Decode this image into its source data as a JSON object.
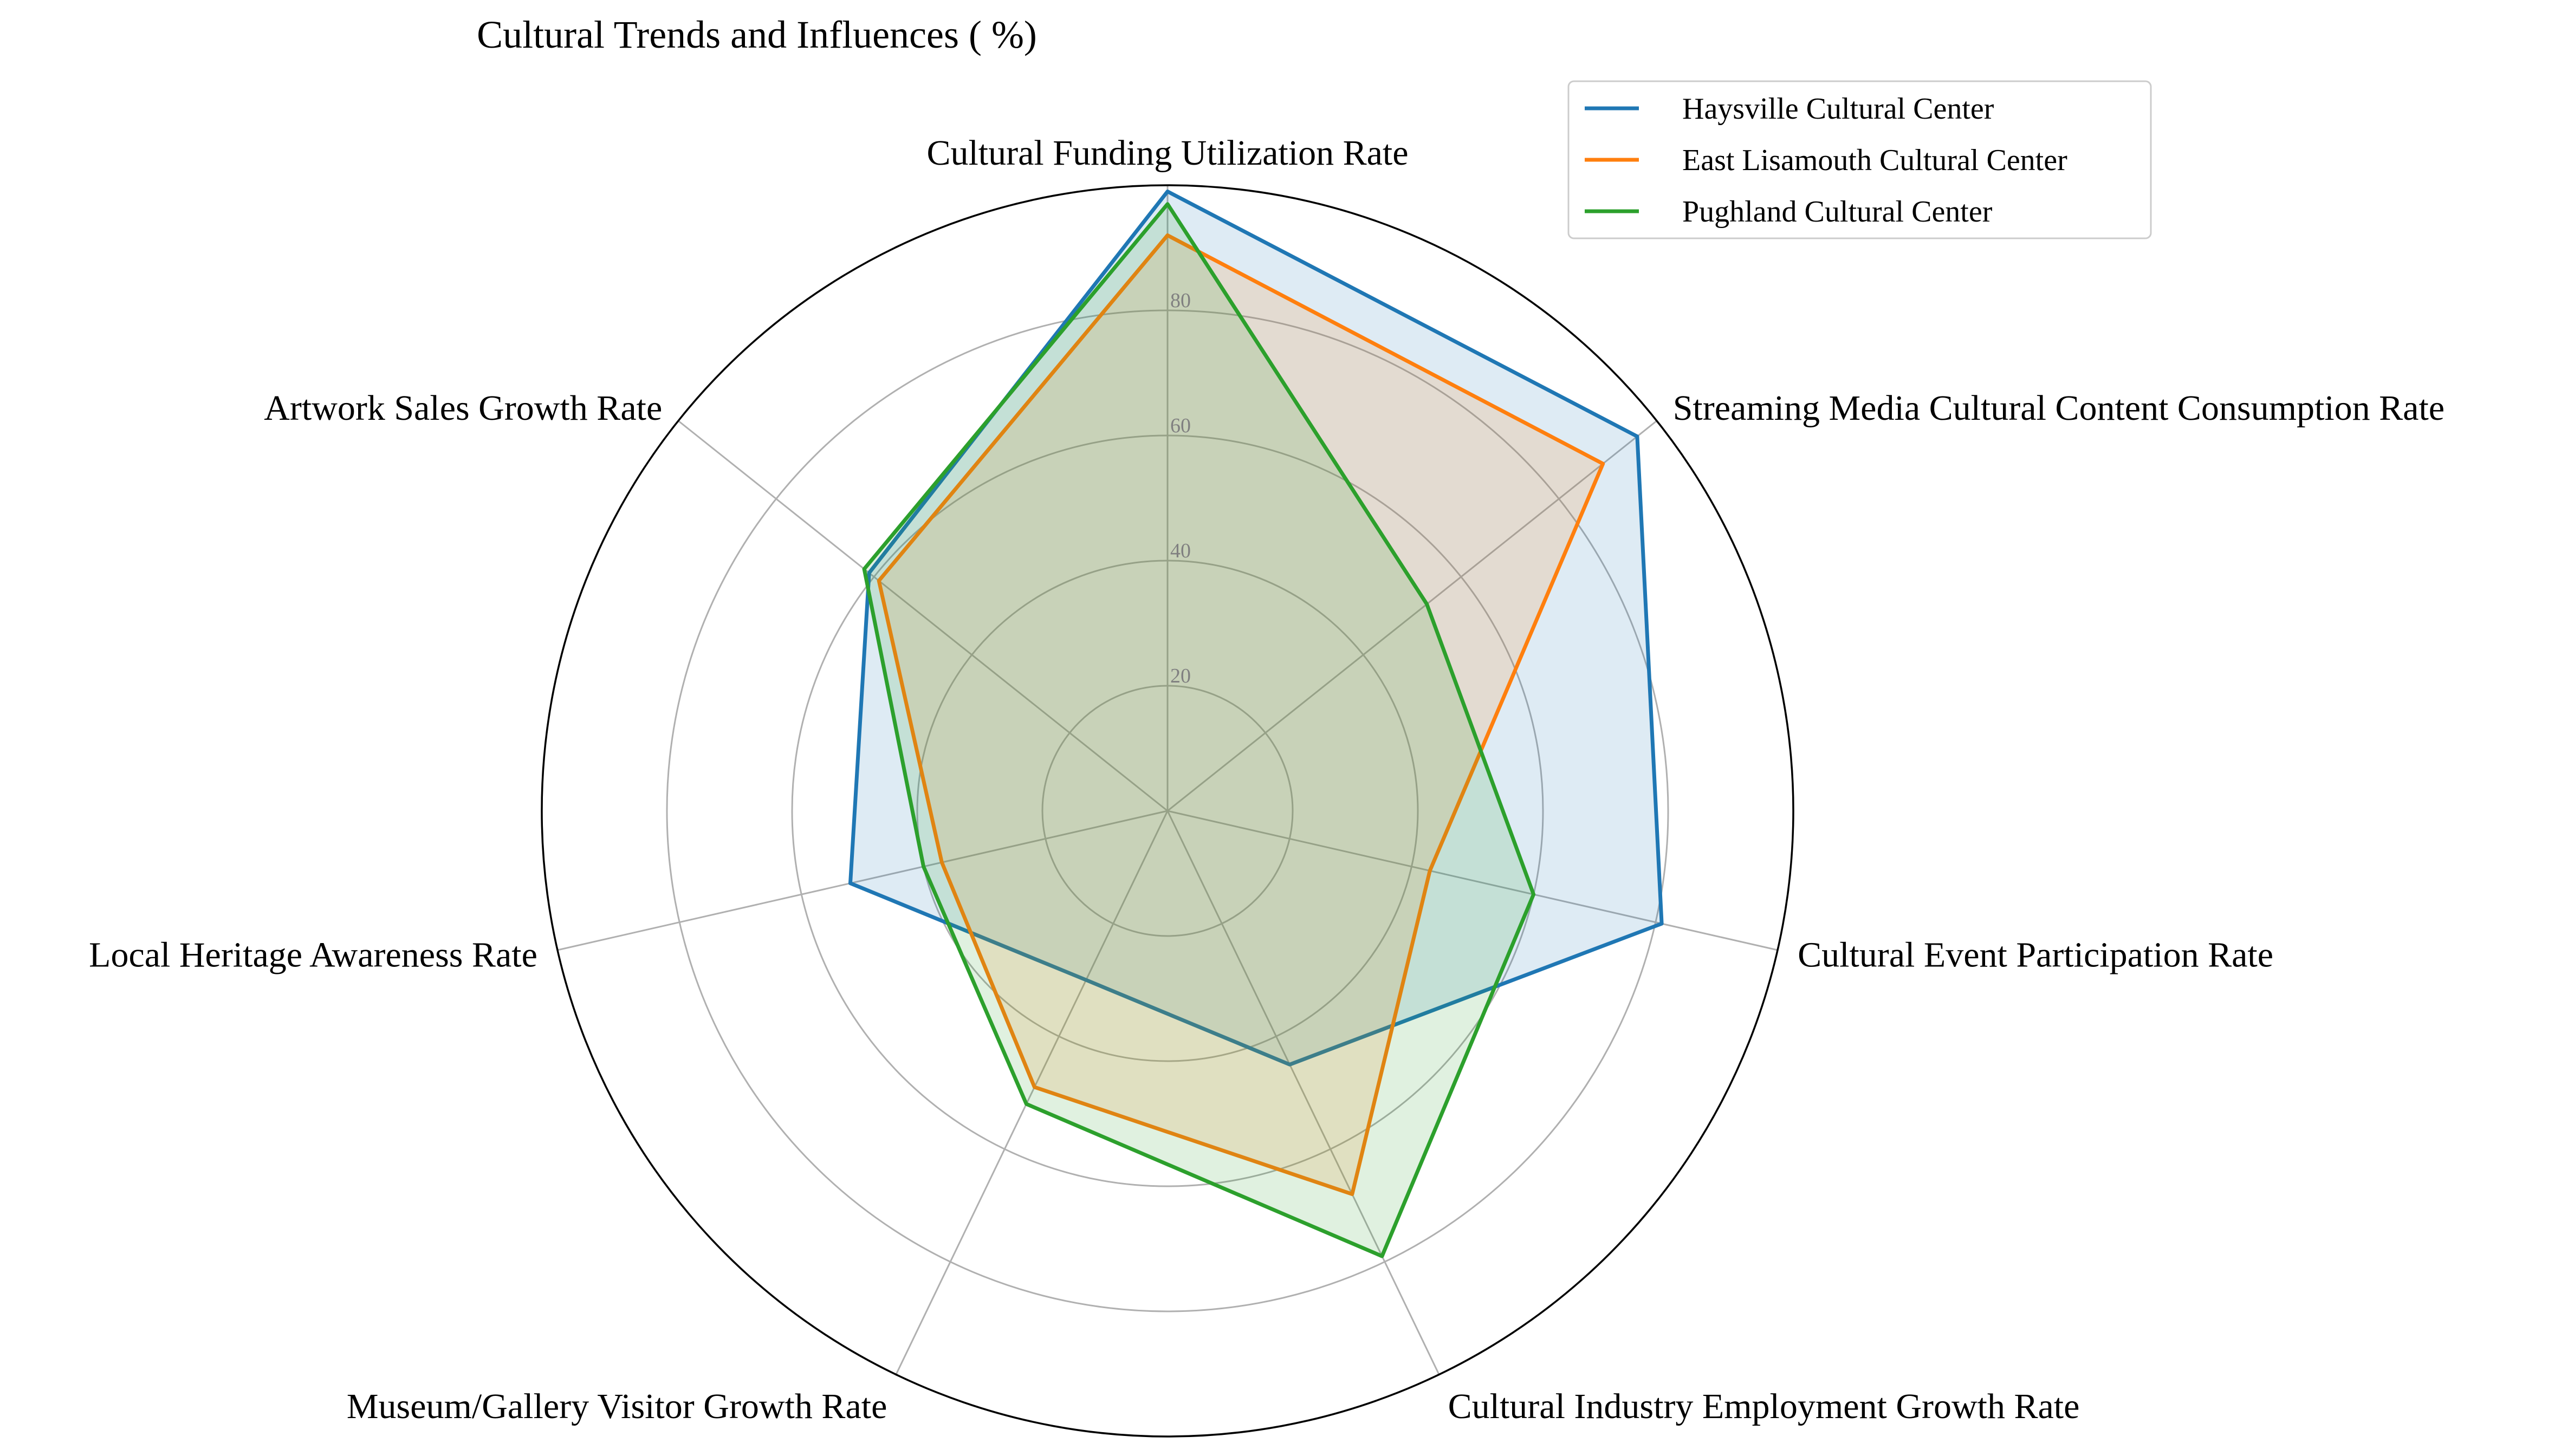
{
  "chart_data": {
    "type": "radar",
    "title": "Cultural Trends and Influences ( %)",
    "categories": [
      "Cultural Funding Utilization Rate",
      "Streaming Media Cultural Content Consumption Rate",
      "Cultural Event Participation Rate",
      "Cultural Industry Employment Growth Rate",
      "Museum/Gallery Visitor Growth Rate",
      "Local Heritage Awareness Rate",
      "Artwork Sales Growth Rate"
    ],
    "rlim": [
      0,
      100
    ],
    "rticks": [
      20,
      40,
      60,
      80
    ],
    "grid": true,
    "legend_position": "top-right",
    "series": [
      {
        "name": "Haysville Cultural Center",
        "color": "#1f77b4",
        "values": [
          99,
          96,
          81,
          45,
          30,
          52,
          61
        ]
      },
      {
        "name": "East Lisamouth Cultural Center",
        "color": "#ff7f0e",
        "values": [
          92,
          89,
          43,
          68,
          49,
          37,
          59
        ]
      },
      {
        "name": "Pughland Cultural Center",
        "color": "#2ca02c",
        "values": [
          97,
          53,
          60,
          79,
          52,
          40,
          62
        ]
      }
    ]
  }
}
